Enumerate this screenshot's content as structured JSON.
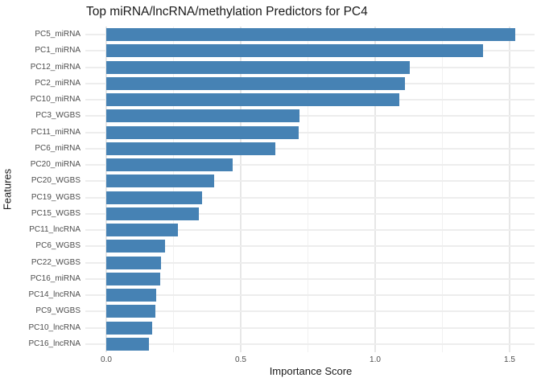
{
  "chart_data": {
    "type": "bar",
    "orientation": "horizontal",
    "title": "Top miRNA/lncRNA/methylation Predictors for PC4",
    "xlabel": "Importance Score",
    "ylabel": "Features",
    "categories": [
      "PC5_miRNA",
      "PC1_miRNA",
      "PC12_miRNA",
      "PC2_miRNA",
      "PC10_miRNA",
      "PC3_WGBS",
      "PC11_miRNA",
      "PC6_miRNA",
      "PC20_miRNA",
      "PC20_WGBS",
      "PC19_WGBS",
      "PC15_WGBS",
      "PC11_lncRNA",
      "PC6_WGBS",
      "PC22_WGBS",
      "PC16_miRNA",
      "PC14_lncRNA",
      "PC9_WGBS",
      "PC10_lncRNA",
      "PC16_lncRNA"
    ],
    "values": [
      1.52,
      1.4,
      1.13,
      1.11,
      1.09,
      0.72,
      0.715,
      0.63,
      0.47,
      0.4,
      0.355,
      0.345,
      0.265,
      0.22,
      0.205,
      0.2,
      0.187,
      0.182,
      0.172,
      0.16
    ],
    "xlim": [
      -0.076,
      1.593
    ],
    "x_major_ticks": [
      0.0,
      0.5,
      1.0,
      1.5
    ],
    "x_tick_labels": [
      "0.0",
      "0.5",
      "1.0",
      "1.5"
    ],
    "x_minor_gridlines": [
      0.25,
      0.75,
      1.25
    ],
    "bar_color": "#4682B4",
    "grid": true,
    "legend": false,
    "background": "#ffffff",
    "text_color_ticks": "#4d4d4d",
    "text_color_titles": "#1a1a1a"
  }
}
